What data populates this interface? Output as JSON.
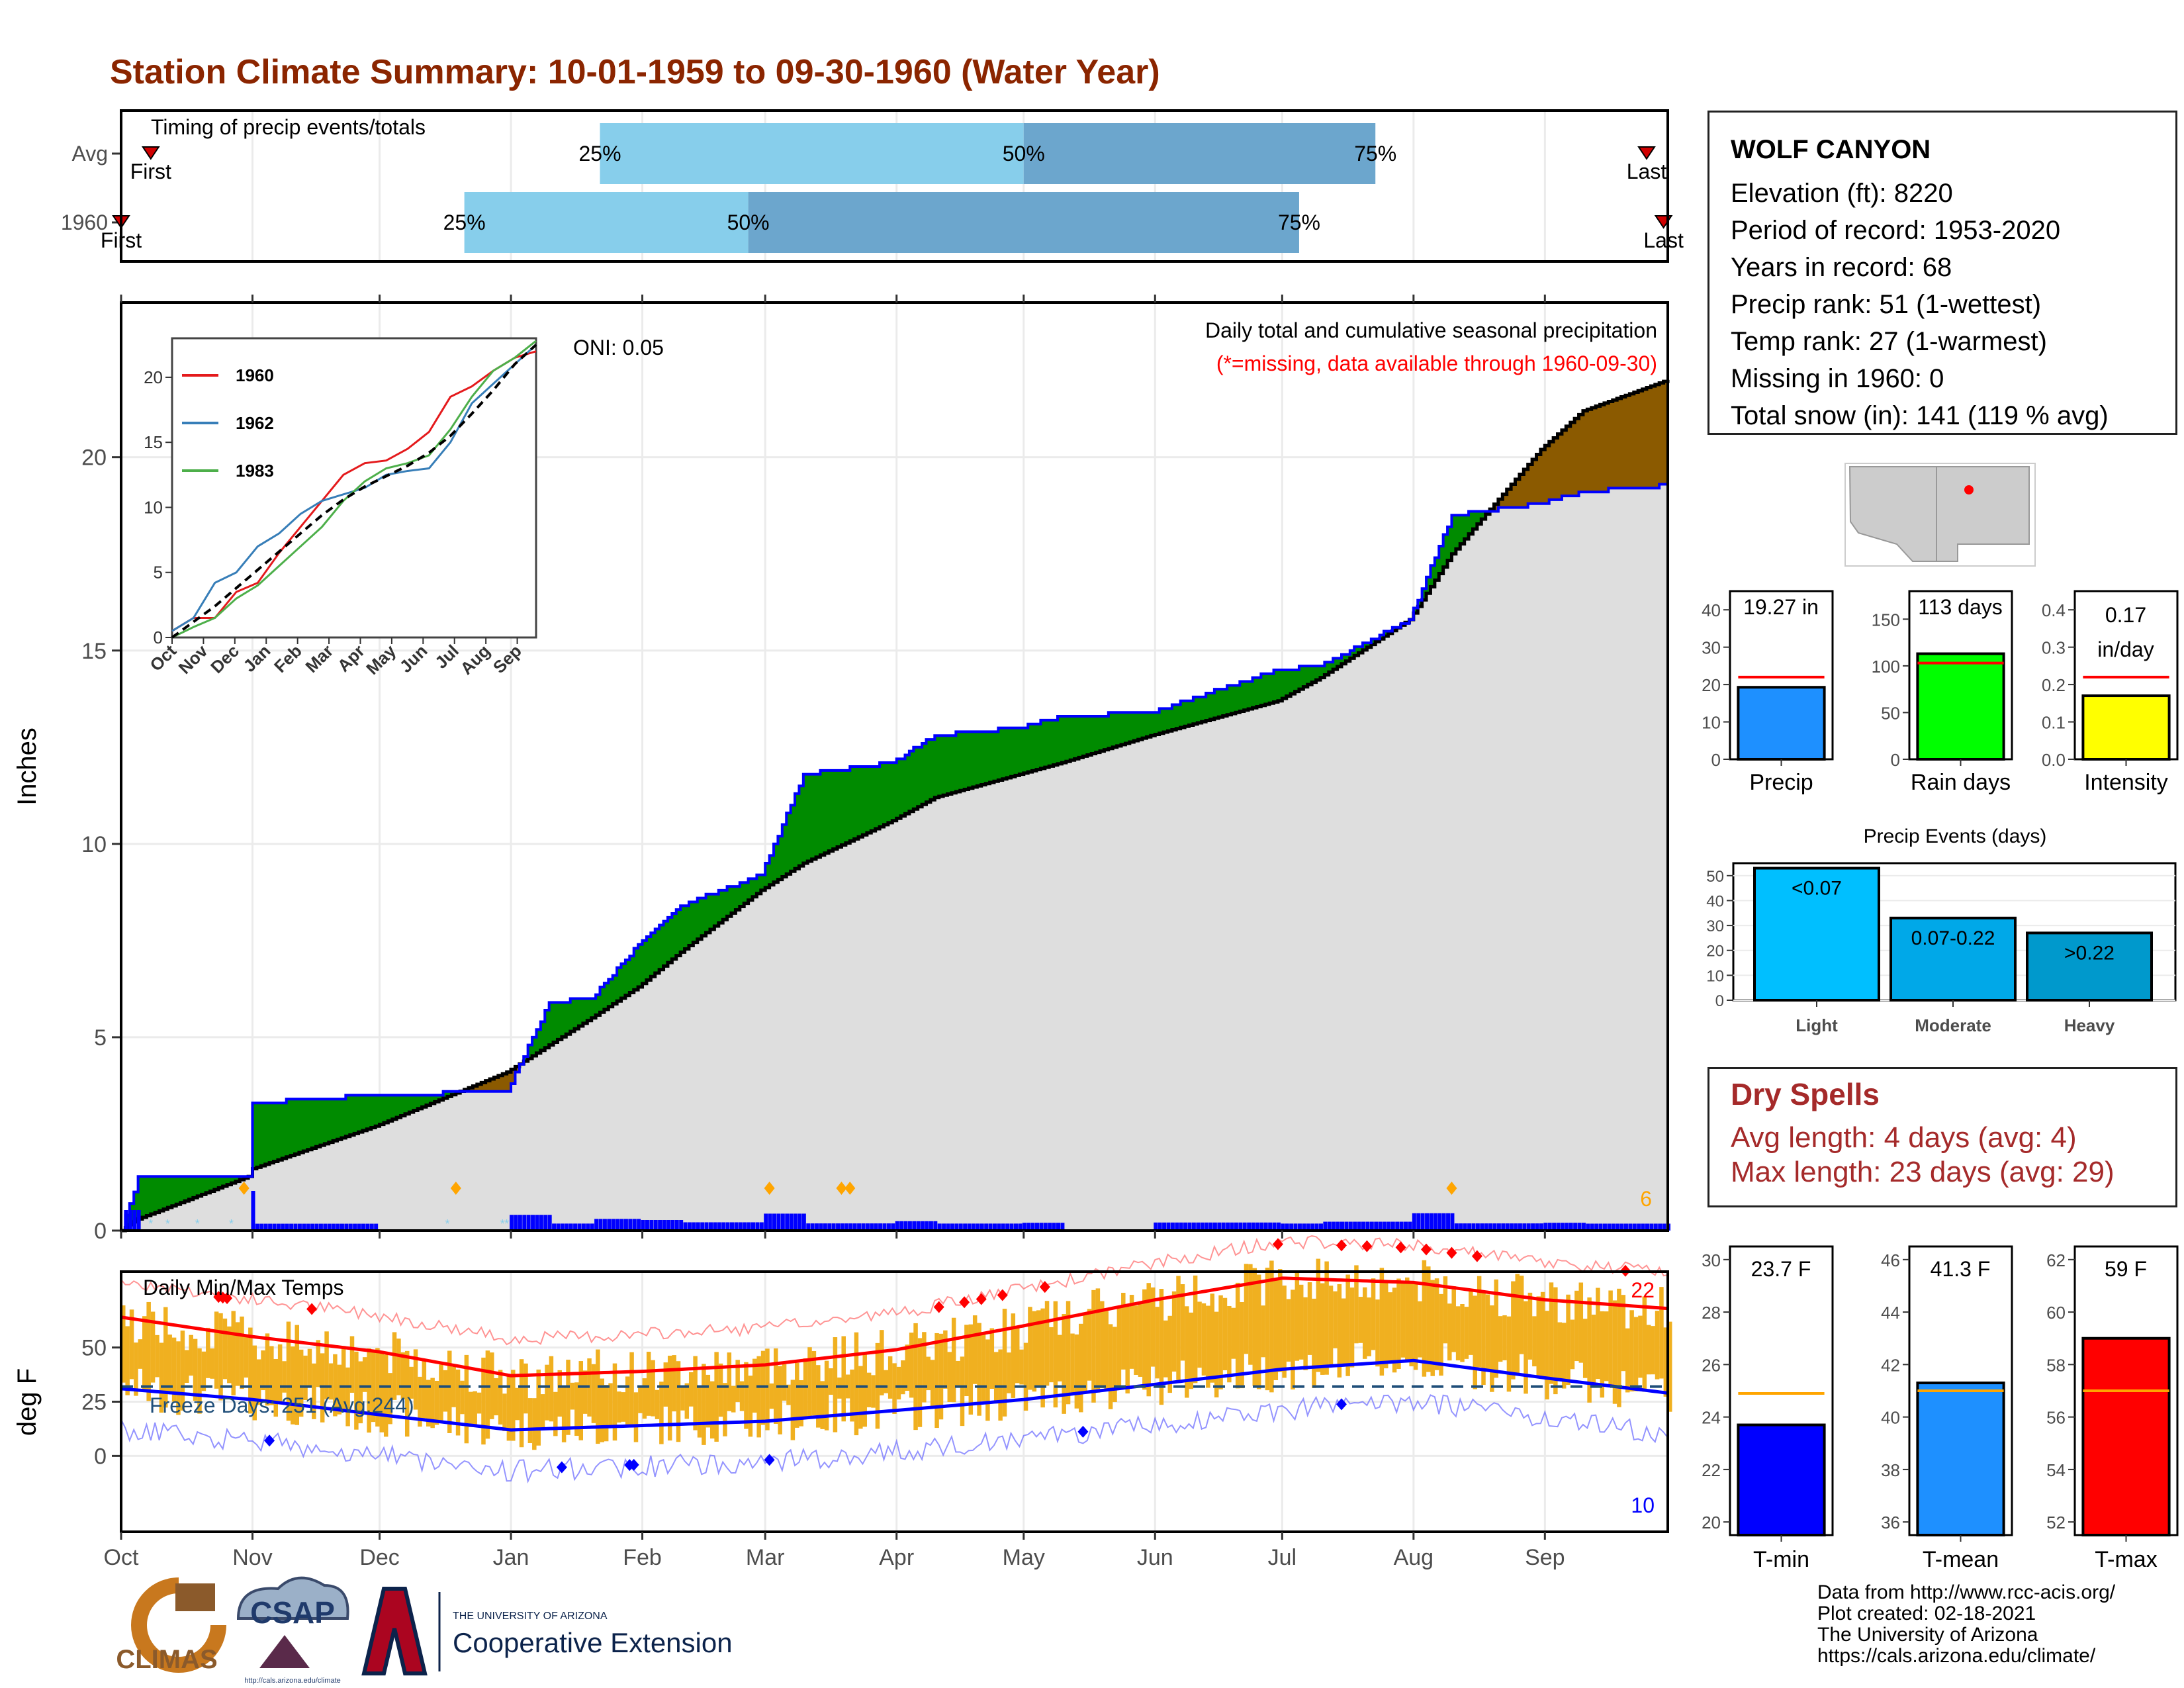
{
  "title": "Station Climate Summary: 10-01-1959 to 09-30-1960 (Water Year)",
  "colors": {
    "title": "#8b2500",
    "precip_q1": "#87ceeb",
    "precip_q2": "#6ca6cd",
    "above": "#008b00",
    "below": "#8b5a00",
    "normal_fill": "#dedede",
    "line_blue": "#0000ff",
    "bar_precip": "#1e90ff",
    "bar_rain": "#00ff00",
    "bar_intensity": "#ffff00",
    "bar_tmin": "#0000ff",
    "bar_tmean": "#1e90ff",
    "bar_tmax": "#ff0000",
    "ev_light": "#00bfff",
    "ev_moderate": "#00a8e8",
    "ev_heavy": "#0099cc",
    "temp_bar": "#f0b020",
    "dry_text": "#a52a2a"
  },
  "station": {
    "name": "WOLF CANYON",
    "lines": [
      "Elevation (ft): 8220",
      "Period of record: 1953-2020",
      "Years in record: 68",
      "Precip rank: 51 (1-wettest)",
      "Temp rank: 27 (1-warmest)",
      "Missing in 1960: 0",
      "Total snow (in): 141 (119 % avg)"
    ]
  },
  "timing": {
    "title": "Timing of precip events/totals",
    "rows": [
      {
        "label": "Avg",
        "first_label": "First",
        "last_label": "Last",
        "q25_label": "25%",
        "q50_label": "50%",
        "q75_label": "75%",
        "first_day": 7,
        "q25_day": 113,
        "q50_day": 213,
        "q75_day": 296,
        "last_day": 360
      },
      {
        "label": "1960",
        "first_label": "First",
        "last_label": "Last",
        "q25_label": "25%",
        "q50_label": "50%",
        "q75_label": "75%",
        "first_day": 0,
        "q25_day": 81,
        "q50_day": 148,
        "q75_day": 278,
        "last_day": 364
      }
    ]
  },
  "precip_panel": {
    "title": "Daily total and cumulative seasonal precipitation",
    "subtitle": "(*=missing, data available through 1960-09-30)",
    "oni": "ONI: 0.05",
    "ylabel": "Inches",
    "yticks": [
      "0",
      "5",
      "10",
      "15",
      "20"
    ],
    "corner_note": "6",
    "inset": {
      "yticks": [
        "0",
        "5",
        "10",
        "15",
        "20"
      ],
      "months": [
        "Oct",
        "Nov",
        "Dec",
        "Jan",
        "Feb",
        "Mar",
        "Apr",
        "May",
        "Jun",
        "Jul",
        "Aug",
        "Sep"
      ],
      "legend": [
        "1960",
        "1962",
        "1983"
      ]
    }
  },
  "temp_panel": {
    "title": "Daily Min/Max Temps",
    "ylabel": "deg F",
    "yticks": [
      "0",
      "25",
      "50"
    ],
    "freeze": "Freeze Days: 251 (Avg:244)",
    "max_count": "22",
    "min_count": "10"
  },
  "months": [
    "Oct",
    "Nov",
    "Dec",
    "Jan",
    "Feb",
    "Mar",
    "Apr",
    "May",
    "Jun",
    "Jul",
    "Aug",
    "Sep"
  ],
  "small_bars": {
    "precip": {
      "value_label": "19.27 in",
      "label": "Precip",
      "yticks": [
        "0",
        "10",
        "20",
        "30",
        "40"
      ]
    },
    "rain": {
      "value_label": "113 days",
      "label": "Rain days",
      "yticks": [
        "0",
        "50",
        "100",
        "150"
      ]
    },
    "intensity": {
      "value_label1": "0.17",
      "value_label2": "in/day",
      "label": "Intensity",
      "yticks": [
        "0.0",
        "0.1",
        "0.2",
        "0.3",
        "0.4"
      ]
    }
  },
  "events": {
    "title": "Precip Events (days)",
    "yticks": [
      "0",
      "10",
      "20",
      "30",
      "40",
      "50"
    ],
    "bars": [
      {
        "label": "<0.07",
        "cat": "Light"
      },
      {
        "label": "0.07-0.22",
        "cat": "Moderate"
      },
      {
        "label": ">0.22",
        "cat": "Heavy"
      }
    ]
  },
  "dry_spells": {
    "title": "Dry Spells",
    "avg": "Avg length: 4 days (avg: 4)",
    "max": "Max length: 23 days (avg: 29)"
  },
  "temp_bars": {
    "tmin": {
      "value_label": "23.7 F",
      "label": "T-min",
      "yticks": [
        "20",
        "22",
        "24",
        "26",
        "28",
        "30"
      ]
    },
    "tmean": {
      "value_label": "41.3 F",
      "label": "T-mean",
      "yticks": [
        "36",
        "38",
        "40",
        "42",
        "44",
        "46"
      ]
    },
    "tmax": {
      "value_label": "59 F",
      "label": "T-max",
      "yticks": [
        "52",
        "54",
        "56",
        "58",
        "60",
        "62"
      ]
    }
  },
  "logos": {
    "climas": "CLIMAS",
    "csap": "CSAP",
    "csap_url": "http://cals.arizona.edu/climate",
    "ua_small": "THE UNIVERSITY OF ARIZONA",
    "coop": "Cooperative Extension"
  },
  "footer": [
    "Data from http://www.rcc-acis.org/",
    "Plot created: 02-18-2021",
    "The University of Arizona",
    "https://cals.arizona.edu/climate/"
  ],
  "chart_data": [
    {
      "type": "area",
      "title": "Daily total and cumulative seasonal precipitation",
      "ylabel": "Inches",
      "ylim": [
        0,
        24
      ],
      "x": [
        "Oct 1",
        "Oct 5",
        "Oct 31",
        "Nov 1",
        "Nov 30",
        "Dec 31",
        "Jan 10",
        "Jan 20",
        "Jan 31",
        "Feb 10",
        "Feb 29",
        "Mar 10",
        "Mar 31",
        "Apr 10",
        "Apr 30",
        "May 10",
        "May 31",
        "Jun 30",
        "Jul 10",
        "Jul 31",
        "Aug 10",
        "Aug 31",
        "Sep 10",
        "Sep 30"
      ],
      "series": [
        {
          "name": "1960",
          "values": [
            0.0,
            1.4,
            1.4,
            3.3,
            3.5,
            3.6,
            5.9,
            6.0,
            7.4,
            8.4,
            9.2,
            11.8,
            12.1,
            12.8,
            13.0,
            13.3,
            13.4,
            14.5,
            14.6,
            15.8,
            18.5,
            18.8,
            19.1,
            19.27
          ]
        },
        {
          "name": "average",
          "values": [
            0.0,
            0.3,
            1.4,
            1.6,
            2.7,
            4.1,
            4.8,
            5.5,
            6.3,
            7.2,
            8.8,
            9.5,
            10.6,
            11.2,
            11.8,
            12.1,
            12.8,
            13.7,
            14.3,
            15.8,
            17.5,
            20.2,
            21.2,
            22.0
          ]
        }
      ]
    },
    {
      "type": "line",
      "title": "Daily Min/Max Temps",
      "ylabel": "deg F",
      "x": [
        "Oct",
        "Nov",
        "Dec",
        "Jan",
        "Feb",
        "Mar",
        "Apr",
        "May",
        "Jun",
        "Jul",
        "Aug",
        "Sep",
        "Sep 30"
      ],
      "series": [
        {
          "name": "avg max",
          "values": [
            64,
            55,
            48,
            37,
            39,
            42,
            49,
            60,
            72,
            82,
            80,
            72,
            68
          ]
        },
        {
          "name": "avg min",
          "values": [
            31,
            26,
            19,
            12,
            14,
            16,
            21,
            26,
            33,
            40,
            44,
            36,
            29
          ]
        }
      ],
      "freeze_line": 32
    },
    {
      "type": "bar",
      "categories": [
        "Precip"
      ],
      "values": [
        19.27
      ],
      "average": 22,
      "ylim": [
        0,
        45
      ]
    },
    {
      "type": "bar",
      "categories": [
        "Rain days"
      ],
      "values": [
        113
      ],
      "average": 103,
      "ylim": [
        0,
        180
      ]
    },
    {
      "type": "bar",
      "categories": [
        "Intensity"
      ],
      "values": [
        0.17
      ],
      "average": 0.22,
      "ylim": [
        0,
        0.45
      ]
    },
    {
      "type": "bar",
      "title": "Precip Events (days)",
      "categories": [
        "Light",
        "Moderate",
        "Heavy"
      ],
      "values": [
        53,
        33,
        27
      ],
      "ylim": [
        0,
        55
      ]
    },
    {
      "type": "bar",
      "categories": [
        "T-min"
      ],
      "values": [
        23.7
      ],
      "average": 24.9,
      "ylim": [
        19.5,
        30.5
      ]
    },
    {
      "type": "bar",
      "categories": [
        "T-mean"
      ],
      "values": [
        41.3
      ],
      "average": 41.0,
      "ylim": [
        35.5,
        46.5
      ]
    },
    {
      "type": "bar",
      "categories": [
        "T-max"
      ],
      "values": [
        59
      ],
      "average": 57,
      "ylim": [
        51.5,
        62.5
      ]
    }
  ]
}
